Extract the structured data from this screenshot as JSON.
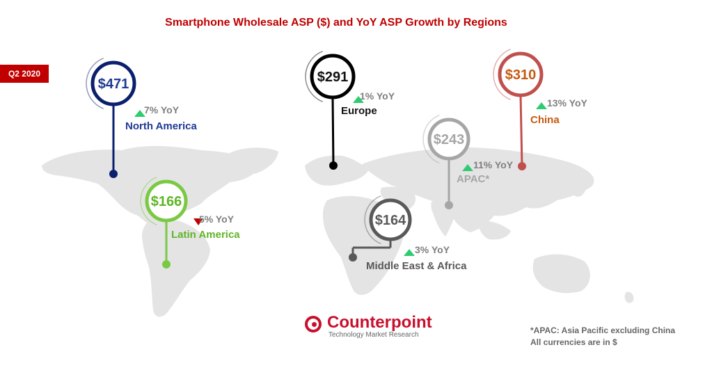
{
  "title": "Smartphone Wholesale ASP ($) and YoY ASP Growth by Regions",
  "period": "Q2 2020",
  "chart_data": {
    "type": "map-infographic",
    "title": "Smartphone Wholesale ASP ($) and YoY ASP Growth by Regions",
    "period": "Q2 2020",
    "unit": "$",
    "regions": [
      {
        "name": "North America",
        "asp_label": "$471",
        "asp": 471,
        "yoy_label": "7% YoY",
        "yoy": 7,
        "direction": "up",
        "color": "#0a1f6e",
        "label_color": "#1f3a93"
      },
      {
        "name": "Europe",
        "asp_label": "$291",
        "asp": 291,
        "yoy_label": "1% YoY",
        "yoy": 1,
        "direction": "up",
        "color": "#000000",
        "label_color": "#111111"
      },
      {
        "name": "China",
        "asp_label": "$310",
        "asp": 310,
        "yoy_label": "13% YoY",
        "yoy": 13,
        "direction": "up",
        "color": "#c0504d",
        "label_color": "#c55a11"
      },
      {
        "name": "APAC*",
        "asp_label": "$243",
        "asp": 243,
        "yoy_label": "11% YoY",
        "yoy": 11,
        "direction": "up",
        "color": "#a6a6a6",
        "label_color": "#a6a6a6"
      },
      {
        "name": "Latin America",
        "asp_label": "$166",
        "asp": 166,
        "yoy_label": "5% YoY",
        "yoy": -5,
        "direction": "down",
        "color": "#7ac943",
        "label_color": "#5fb526"
      },
      {
        "name": "Middle East & Africa",
        "asp_label": "$164",
        "asp": 164,
        "yoy_label": "3% YoY",
        "yoy": 3,
        "direction": "up",
        "color": "#595959",
        "label_color": "#595959"
      }
    ],
    "up_color": "#2ecc71",
    "down_color": "#c00000"
  },
  "logo": {
    "brand": "Counterpoint",
    "tagline": "Technology Market Research"
  },
  "footnotes": [
    "*APAC: Asia Pacific excluding China",
    "All currencies are in $"
  ]
}
